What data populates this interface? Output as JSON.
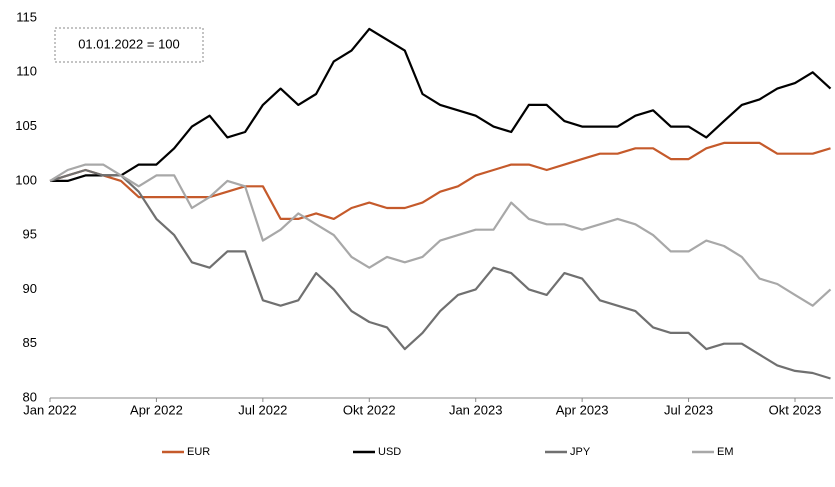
{
  "chart_data": {
    "type": "line",
    "annotation": "01.01.2022 = 100",
    "categories": [
      "Jan 2022",
      null,
      null,
      null,
      null,
      null,
      "Apr 2022",
      null,
      null,
      null,
      null,
      null,
      "Jul 2022",
      null,
      null,
      null,
      null,
      null,
      "Okt 2022",
      null,
      null,
      null,
      null,
      null,
      "Jan 2023",
      null,
      null,
      null,
      null,
      null,
      "Apr 2023",
      null,
      null,
      null,
      null,
      null,
      "Jul 2023",
      null,
      null,
      null,
      null,
      null,
      "Okt 2023",
      null,
      null
    ],
    "series": [
      {
        "name": "EUR",
        "color": "#c55a2b",
        "values": [
          100,
          100.5,
          101,
          100.5,
          100,
          98.5,
          98.5,
          98.5,
          98.5,
          98.5,
          99,
          99.5,
          99.5,
          96.5,
          96.5,
          97,
          96.5,
          97.5,
          98,
          97.5,
          97.5,
          98,
          99,
          99.5,
          100.5,
          101,
          101.5,
          101.5,
          101,
          101.5,
          102,
          102.5,
          102.5,
          103,
          103,
          102,
          102,
          103,
          103.5,
          103.5,
          103.5,
          102.5,
          102.5,
          102.5,
          103
        ]
      },
      {
        "name": "USD",
        "color": "#000000",
        "values": [
          100,
          100,
          100.5,
          100.5,
          100.5,
          101.5,
          101.5,
          103,
          105,
          106,
          104,
          104.5,
          107,
          108.5,
          107,
          108,
          111,
          112,
          114,
          113,
          112,
          108,
          107,
          106.5,
          106,
          105,
          104.5,
          107,
          107,
          105.5,
          105,
          105,
          105,
          106,
          106.5,
          105,
          105,
          104,
          105.5,
          107,
          107.5,
          108.5,
          109,
          110,
          108.5
        ]
      },
      {
        "name": "JPY",
        "color": "#707070",
        "values": [
          100,
          100.5,
          101,
          100.5,
          100.5,
          99,
          96.5,
          95,
          92.5,
          92,
          93.5,
          93.5,
          89,
          88.5,
          89,
          91.5,
          90,
          88,
          87,
          86.5,
          84.5,
          86,
          88,
          89.5,
          90,
          92,
          91.5,
          90,
          89.5,
          91.5,
          91,
          89,
          88.5,
          88,
          86.5,
          86,
          86,
          84.5,
          85,
          85,
          84,
          83,
          82.5,
          82.3,
          81.8
        ]
      },
      {
        "name": "EM",
        "color": "#a8a8a8",
        "values": [
          100,
          101,
          101.5,
          101.5,
          100.5,
          99.5,
          100.5,
          100.5,
          97.5,
          98.5,
          100,
          99.5,
          94.5,
          95.5,
          97,
          96,
          95,
          93,
          92,
          93,
          92.5,
          93,
          94.5,
          95,
          95.5,
          95.5,
          98,
          96.5,
          96,
          96,
          95.5,
          96,
          96.5,
          96,
          95,
          93.5,
          93.5,
          94.5,
          94,
          93,
          91,
          90.5,
          89.5,
          88.5,
          90
        ]
      }
    ],
    "ylim": [
      80,
      115
    ],
    "yticks": [
      80,
      85,
      90,
      95,
      100,
      105,
      110,
      115
    ],
    "grid": false,
    "legend": "bottom"
  }
}
